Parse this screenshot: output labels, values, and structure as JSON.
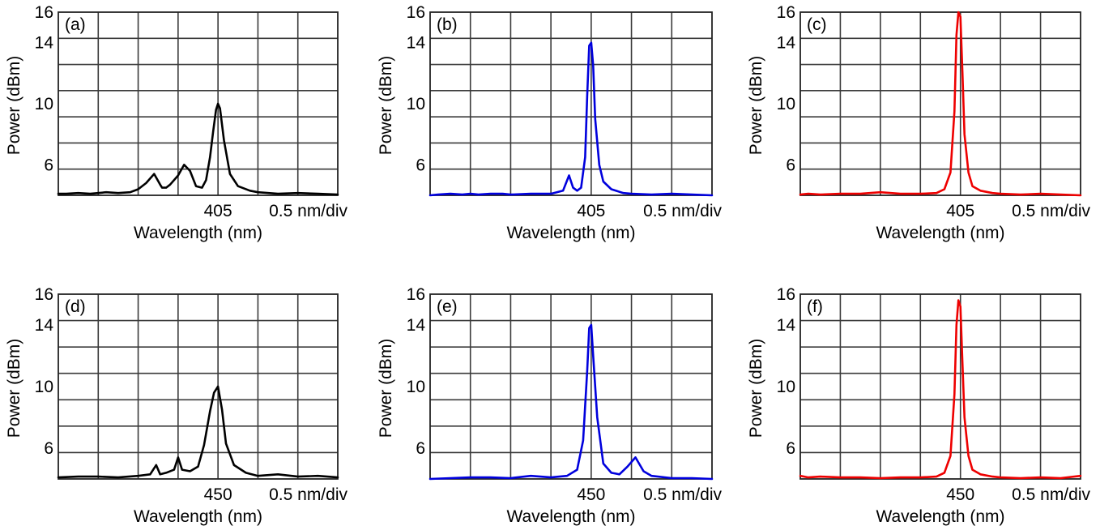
{
  "chart_data": [
    {
      "type": "line",
      "panel_label": "(a)",
      "color": "#000000",
      "xlabel": "Wavelength (nm)",
      "ylabel": "Power (dBm)",
      "x_tick_label": "405",
      "x_scale_label": "0.5 nm/div",
      "x_unit_note": "x in divisions of 0.5 nm relative to the 405 nm gridline",
      "xlim": [
        -4,
        3
      ],
      "ylim": [
        4,
        16
      ],
      "yticks": [
        6,
        10,
        14,
        16
      ],
      "grid": true,
      "series": [
        {
          "x": [
            -4,
            -3.8,
            -3.5,
            -3.2,
            -3,
            -2.8,
            -2.5,
            -2.2,
            -2,
            -1.8,
            -1.6,
            -1.45,
            -1.4,
            -1.3,
            -1.2,
            -1,
            -0.85,
            -0.7,
            -0.55,
            -0.4,
            -0.3,
            -0.2,
            -0.12,
            -0.05,
            0,
            0.05,
            0.15,
            0.3,
            0.5,
            0.8,
            1,
            1.5,
            2,
            2.5,
            3
          ],
          "y": [
            4.1,
            4.1,
            4.15,
            4.1,
            4.15,
            4.2,
            4.15,
            4.2,
            4.4,
            4.8,
            5.4,
            4.7,
            4.5,
            4.5,
            4.7,
            5.3,
            6.0,
            5.6,
            4.6,
            4.5,
            5.0,
            6.5,
            8.2,
            9.6,
            10.0,
            9.7,
            7.6,
            5.4,
            4.6,
            4.3,
            4.2,
            4.1,
            4.15,
            4.1,
            4.05
          ]
        }
      ]
    },
    {
      "type": "line",
      "panel_label": "(b)",
      "color": "#0000dd",
      "xlabel": "Wavelength (nm)",
      "ylabel": "Power (dBm)",
      "x_tick_label": "405",
      "x_scale_label": "0.5 nm/div",
      "x_unit_note": "x in divisions of 0.5 nm relative to the 405 nm gridline",
      "xlim": [
        -4,
        3
      ],
      "ylim": [
        4,
        16
      ],
      "yticks": [
        6,
        10,
        14,
        16
      ],
      "grid": true,
      "series": [
        {
          "x": [
            -4,
            -3.8,
            -3.5,
            -3.2,
            -3,
            -2.8,
            -2.5,
            -2.2,
            -2,
            -1.5,
            -1,
            -0.7,
            -0.55,
            -0.45,
            -0.35,
            -0.25,
            -0.15,
            -0.1,
            -0.05,
            0,
            0.05,
            0.1,
            0.2,
            0.3,
            0.5,
            0.8,
            1,
            1.5,
            2,
            2.5,
            3
          ],
          "y": [
            4.0,
            4.05,
            4.1,
            4.05,
            4.1,
            4.05,
            4.1,
            4.1,
            4.05,
            4.1,
            4.1,
            4.3,
            5.3,
            4.5,
            4.3,
            4.5,
            6.5,
            10.5,
            13.8,
            14.0,
            12.5,
            9.0,
            6.0,
            4.9,
            4.4,
            4.15,
            4.1,
            4.05,
            4.1,
            4.05,
            4.0
          ]
        }
      ]
    },
    {
      "type": "line",
      "panel_label": "(c)",
      "color": "#ee0000",
      "xlabel": "Wavelength (nm)",
      "ylabel": "Power (dBm)",
      "x_tick_label": "405",
      "x_scale_label": "0.5 nm/div",
      "x_unit_note": "x in divisions of 0.5 nm relative to the 405 nm gridline",
      "xlim": [
        -4,
        3
      ],
      "ylim": [
        4,
        16
      ],
      "yticks": [
        6,
        10,
        14,
        16
      ],
      "grid": true,
      "series": [
        {
          "x": [
            -4,
            -3.8,
            -3.5,
            -3,
            -2.5,
            -2,
            -1.5,
            -1,
            -0.6,
            -0.4,
            -0.25,
            -0.15,
            -0.1,
            -0.05,
            0,
            0.05,
            0.1,
            0.2,
            0.3,
            0.5,
            0.8,
            1,
            1.5,
            2,
            2.5,
            3
          ],
          "y": [
            4.05,
            4.1,
            4.05,
            4.1,
            4.1,
            4.2,
            4.1,
            4.1,
            4.15,
            4.4,
            5.5,
            9.5,
            14.5,
            16.0,
            15.7,
            12.0,
            8.0,
            5.5,
            4.6,
            4.3,
            4.15,
            4.1,
            4.05,
            4.1,
            4.05,
            4.0
          ]
        }
      ]
    },
    {
      "type": "line",
      "panel_label": "(d)",
      "color": "#000000",
      "xlabel": "Wavelength (nm)",
      "ylabel": "Power (dBm)",
      "x_tick_label": "450",
      "x_scale_label": "0.5 nm/div",
      "x_unit_note": "x in divisions of 0.5 nm relative to the 450 nm gridline",
      "xlim": [
        -4,
        3
      ],
      "ylim": [
        4,
        16
      ],
      "yticks": [
        6,
        10,
        14,
        16
      ],
      "grid": true,
      "series": [
        {
          "x": [
            -4,
            -3.5,
            -3,
            -2.5,
            -2,
            -1.7,
            -1.55,
            -1.45,
            -1.3,
            -1.1,
            -1,
            -0.9,
            -0.7,
            -0.5,
            -0.35,
            -0.2,
            -0.1,
            0,
            0.1,
            0.2,
            0.4,
            0.7,
            1,
            1.5,
            2,
            2.5,
            3
          ],
          "y": [
            4.1,
            4.15,
            4.15,
            4.1,
            4.2,
            4.3,
            4.9,
            4.3,
            4.4,
            4.6,
            5.4,
            4.6,
            4.5,
            4.8,
            6.2,
            8.4,
            9.6,
            10.0,
            8.5,
            6.3,
            4.9,
            4.4,
            4.2,
            4.3,
            4.15,
            4.2,
            4.1
          ]
        }
      ]
    },
    {
      "type": "line",
      "panel_label": "(e)",
      "color": "#0000dd",
      "xlabel": "Wavelength (nm)",
      "ylabel": "Power (dBm)",
      "x_tick_label": "450",
      "x_scale_label": "0.5 nm/div",
      "x_unit_note": "x in divisions of 0.5 nm relative to the 450 nm gridline",
      "xlim": [
        -4,
        3
      ],
      "ylim": [
        4,
        16
      ],
      "yticks": [
        6,
        10,
        14,
        16
      ],
      "grid": true,
      "series": [
        {
          "x": [
            -4,
            -3.5,
            -3,
            -2.5,
            -2,
            -1.5,
            -1,
            -0.6,
            -0.35,
            -0.2,
            -0.1,
            -0.05,
            0,
            0.05,
            0.15,
            0.3,
            0.5,
            0.7,
            0.9,
            1.1,
            1.3,
            1.5,
            2,
            2.5,
            3
          ],
          "y": [
            4.0,
            4.05,
            4.1,
            4.1,
            4.05,
            4.2,
            4.1,
            4.2,
            4.6,
            6.5,
            11.0,
            13.8,
            14.0,
            12.0,
            8.0,
            5.0,
            4.4,
            4.3,
            4.8,
            5.4,
            4.5,
            4.2,
            4.05,
            4.05,
            4.0
          ]
        }
      ]
    },
    {
      "type": "line",
      "panel_label": "(f)",
      "color": "#ee0000",
      "xlabel": "Wavelength (nm)",
      "ylabel": "Power (dBm)",
      "x_tick_label": "450",
      "x_scale_label": "0.5 nm/div",
      "x_unit_note": "x in divisions of 0.5 nm relative to the 450 nm gridline",
      "xlim": [
        -4,
        3
      ],
      "ylim": [
        4,
        16
      ],
      "yticks": [
        6,
        10,
        14,
        16
      ],
      "grid": true,
      "series": [
        {
          "x": [
            -4,
            -3.8,
            -3.5,
            -3,
            -2.5,
            -2,
            -1.5,
            -1,
            -0.6,
            -0.4,
            -0.25,
            -0.15,
            -0.1,
            -0.05,
            0,
            0.05,
            0.1,
            0.2,
            0.3,
            0.5,
            0.8,
            1,
            1.5,
            2,
            2.5,
            3
          ],
          "y": [
            4.2,
            4.1,
            4.15,
            4.1,
            4.1,
            4.05,
            4.1,
            4.1,
            4.15,
            4.4,
            5.5,
            9.5,
            14.0,
            15.6,
            15.2,
            11.5,
            8.0,
            5.5,
            4.6,
            4.3,
            4.15,
            4.1,
            4.05,
            4.1,
            4.05,
            4.2
          ]
        }
      ]
    }
  ]
}
